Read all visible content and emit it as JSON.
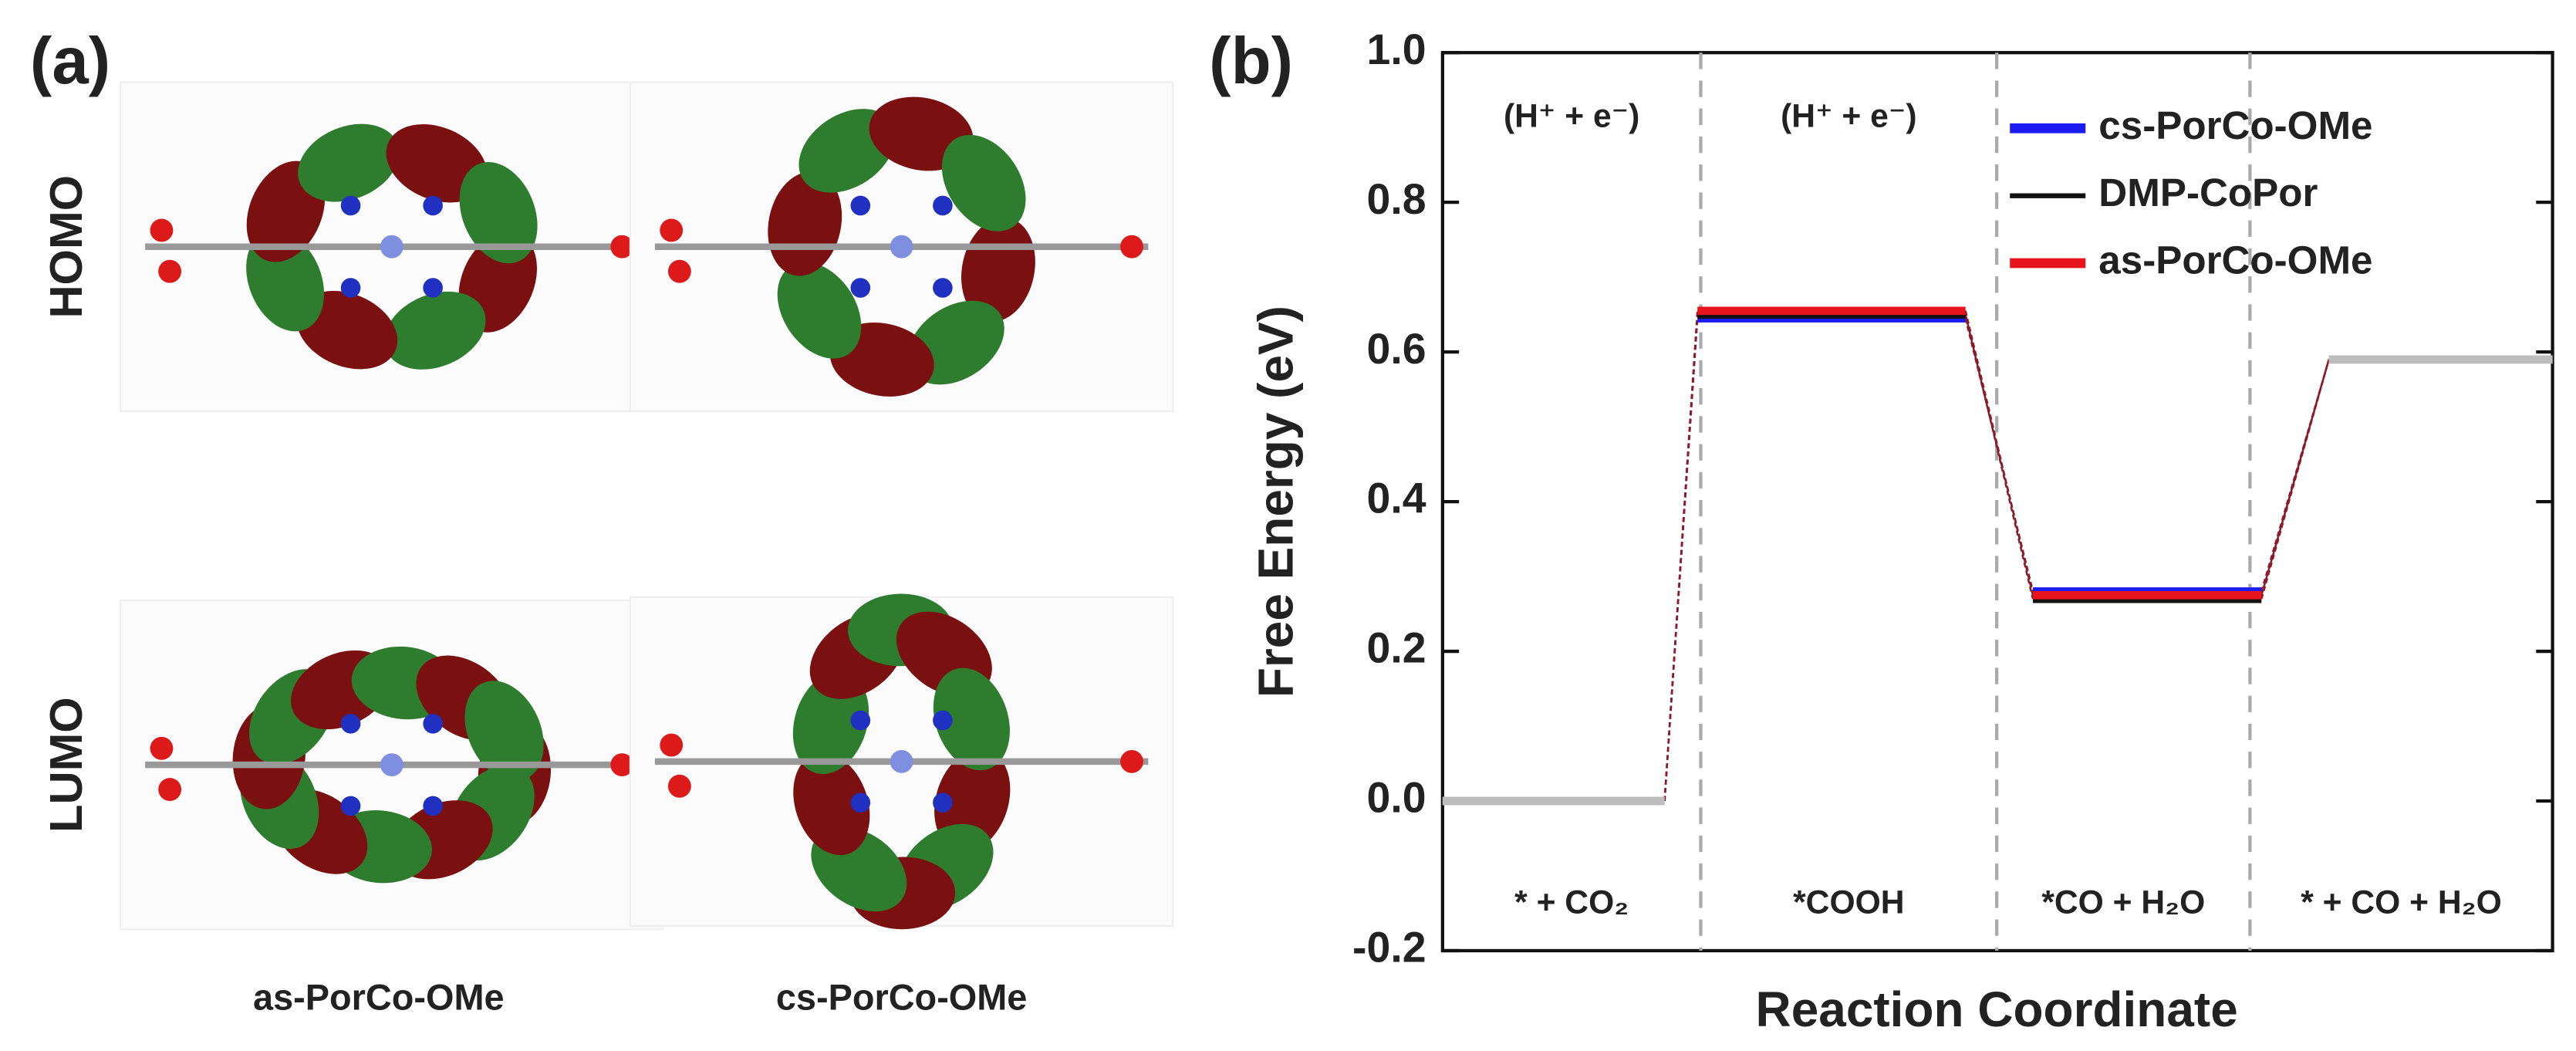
{
  "panel_a": {
    "label": "(a)",
    "row_labels": [
      "HOMO",
      "LUMO"
    ],
    "column_labels": [
      "as-PorCo-OMe",
      "cs-PorCo-OMe"
    ]
  },
  "chart_data": {
    "type": "step",
    "panel_label": "(b)",
    "y_label": "Free Energy (eV)",
    "x_label": "Reaction Coordinate",
    "categories": [
      "* + CO₂",
      "*COOH",
      "*CO + H₂O",
      "* + CO + H₂O"
    ],
    "annotations": [
      "(H⁺ + e⁻)",
      "(H⁺ + e⁻)"
    ],
    "series": [
      {
        "name": "cs-PorCo-OMe",
        "color": "#1c1cf0",
        "values": [
          0,
          0.645,
          0.28,
          0.59
        ]
      },
      {
        "name": "DMP-CoPor",
        "color": "#111111",
        "values": [
          0,
          0.65,
          0.27,
          0.59
        ]
      },
      {
        "name": "as-PorCo-OMe",
        "color": "#e8141b",
        "values": [
          0,
          0.655,
          0.275,
          0.59
        ]
      }
    ],
    "shared_color": "#bdbdbd",
    "connector_color": "#8b1a2a",
    "ylim": [
      -0.2,
      1.0
    ],
    "yticks": [
      -0.2,
      {
        "value": 0.0,
        "label": "0.0"
      },
      0.2,
      0.4,
      0.6,
      0.8,
      {
        "value": 1.0,
        "label": "1.0"
      }
    ],
    "legend": "upper right"
  }
}
